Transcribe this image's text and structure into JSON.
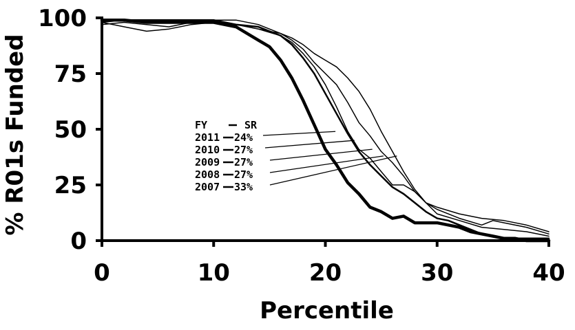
{
  "chart_data": {
    "type": "line",
    "xlabel": "Percentile",
    "ylabel": "% R01s Funded",
    "xlim": [
      0,
      40
    ],
    "ylim": [
      0,
      100
    ],
    "x_ticks": [
      "0",
      "10",
      "20",
      "30",
      "40"
    ],
    "y_ticks": [
      "0",
      "25",
      "50",
      "75",
      "100"
    ],
    "grid": false,
    "legend": {
      "header_fy": "FY",
      "header_sr": "SR",
      "entries": [
        {
          "fy": "2011",
          "sr": "24%"
        },
        {
          "fy": "2010",
          "sr": "27%"
        },
        {
          "fy": "2009",
          "sr": "27%"
        },
        {
          "fy": "2008",
          "sr": "27%"
        },
        {
          "fy": "2007",
          "sr": "33%"
        }
      ]
    },
    "series": [
      {
        "name": "2011",
        "stroke": 4.5,
        "points": [
          [
            0,
            99
          ],
          [
            2,
            99
          ],
          [
            4,
            98
          ],
          [
            6,
            98
          ],
          [
            8,
            98
          ],
          [
            10,
            98
          ],
          [
            12,
            96
          ],
          [
            14,
            90
          ],
          [
            15,
            87
          ],
          [
            16,
            81
          ],
          [
            17,
            73
          ],
          [
            18,
            63
          ],
          [
            19,
            52
          ],
          [
            20,
            41
          ],
          [
            21,
            34
          ],
          [
            22,
            26
          ],
          [
            23,
            21
          ],
          [
            24,
            15
          ],
          [
            25,
            13
          ],
          [
            26,
            10
          ],
          [
            27,
            11
          ],
          [
            28,
            8
          ],
          [
            29,
            8
          ],
          [
            30,
            8
          ],
          [
            31,
            7
          ],
          [
            32,
            6
          ],
          [
            33,
            4
          ],
          [
            34,
            3
          ],
          [
            35,
            2
          ],
          [
            36,
            1
          ],
          [
            37,
            1
          ],
          [
            38,
            0
          ],
          [
            40,
            0
          ]
        ]
      },
      {
        "name": "2010",
        "stroke": 2.5,
        "points": [
          [
            0,
            99
          ],
          [
            2,
            99
          ],
          [
            4,
            99
          ],
          [
            6,
            99
          ],
          [
            8,
            99
          ],
          [
            10,
            99
          ],
          [
            12,
            97
          ],
          [
            14,
            96
          ],
          [
            16,
            92
          ],
          [
            17,
            88
          ],
          [
            18,
            82
          ],
          [
            19,
            75
          ],
          [
            20,
            66
          ],
          [
            21,
            57
          ],
          [
            22,
            48
          ],
          [
            23,
            40
          ],
          [
            24,
            34
          ],
          [
            25,
            29
          ],
          [
            26,
            24
          ],
          [
            27,
            21
          ],
          [
            28,
            17
          ],
          [
            29,
            13
          ],
          [
            30,
            10
          ],
          [
            31,
            9
          ],
          [
            32,
            7
          ],
          [
            33,
            5
          ],
          [
            34,
            3
          ],
          [
            35,
            2
          ],
          [
            36,
            1
          ],
          [
            38,
            1
          ],
          [
            40,
            1
          ]
        ]
      },
      {
        "name": "2009",
        "stroke": 1.5,
        "points": [
          [
            0,
            98
          ],
          [
            2,
            96
          ],
          [
            4,
            94
          ],
          [
            6,
            95
          ],
          [
            8,
            97
          ],
          [
            10,
            98
          ],
          [
            12,
            97
          ],
          [
            14,
            95
          ],
          [
            16,
            92
          ],
          [
            17,
            89
          ],
          [
            18,
            84
          ],
          [
            19,
            78
          ],
          [
            20,
            70
          ],
          [
            21,
            60
          ],
          [
            22,
            49
          ],
          [
            23,
            41
          ],
          [
            24,
            37
          ],
          [
            25,
            31
          ],
          [
            26,
            25
          ],
          [
            27,
            25
          ],
          [
            28,
            22
          ],
          [
            29,
            17
          ],
          [
            30,
            12
          ],
          [
            32,
            9
          ],
          [
            34,
            6
          ],
          [
            36,
            5
          ],
          [
            38,
            4
          ],
          [
            40,
            2
          ]
        ]
      },
      {
        "name": "2008",
        "stroke": 1.5,
        "points": [
          [
            0,
            97
          ],
          [
            2,
            98
          ],
          [
            4,
            97
          ],
          [
            6,
            96
          ],
          [
            8,
            98
          ],
          [
            10,
            98
          ],
          [
            12,
            97
          ],
          [
            14,
            95
          ],
          [
            16,
            93
          ],
          [
            17,
            90
          ],
          [
            18,
            86
          ],
          [
            19,
            80
          ],
          [
            20,
            75
          ],
          [
            21,
            70
          ],
          [
            22,
            62
          ],
          [
            23,
            53
          ],
          [
            24,
            47
          ],
          [
            25,
            40
          ],
          [
            26,
            35
          ],
          [
            27,
            29
          ],
          [
            28,
            22
          ],
          [
            29,
            17
          ],
          [
            30,
            14
          ],
          [
            32,
            10
          ],
          [
            34,
            7
          ],
          [
            35,
            9
          ],
          [
            36,
            8
          ],
          [
            38,
            6
          ],
          [
            40,
            3
          ]
        ]
      },
      {
        "name": "2007",
        "stroke": 1.5,
        "points": [
          [
            0,
            98
          ],
          [
            2,
            99
          ],
          [
            4,
            99
          ],
          [
            6,
            99
          ],
          [
            8,
            99
          ],
          [
            10,
            99
          ],
          [
            12,
            99
          ],
          [
            14,
            97
          ],
          [
            16,
            93
          ],
          [
            17,
            91
          ],
          [
            18,
            88
          ],
          [
            19,
            84
          ],
          [
            20,
            81
          ],
          [
            21,
            78
          ],
          [
            22,
            73
          ],
          [
            23,
            67
          ],
          [
            24,
            59
          ],
          [
            25,
            49
          ],
          [
            26,
            40
          ],
          [
            27,
            31
          ],
          [
            28,
            23
          ],
          [
            29,
            17
          ],
          [
            30,
            15
          ],
          [
            32,
            12
          ],
          [
            34,
            10
          ],
          [
            36,
            9
          ],
          [
            38,
            7
          ],
          [
            40,
            4
          ]
        ]
      }
    ]
  }
}
